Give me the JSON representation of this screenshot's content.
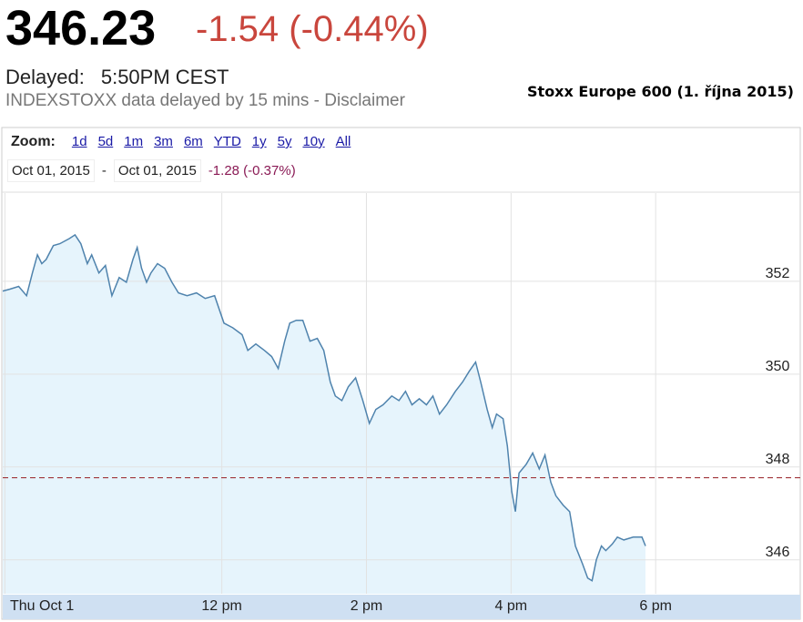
{
  "header": {
    "price": "346.23",
    "change": "-1.54 (-0.44%)",
    "delayed_label": "Delayed:",
    "delayed_time": "5:50PM CEST",
    "disclaimer": "INDEXSTOXX data delayed by 15 mins - Disclaimer",
    "caption": "Stoxx Europe 600 (1. října 2015)"
  },
  "zoom": {
    "label": "Zoom:",
    "options": [
      "1d",
      "5d",
      "1m",
      "3m",
      "6m",
      "YTD",
      "1y",
      "5y",
      "10y",
      "All"
    ]
  },
  "range": {
    "start": "Oct 01, 2015",
    "separator": "-",
    "end": "Oct 01, 2015",
    "change": "-1.28 (-0.37%)"
  },
  "chart_data": {
    "type": "area",
    "color": "#4f83ad",
    "fill": "#e6f4fc",
    "grid": true,
    "reference_line": 347.77,
    "reference_color": "#a0343a",
    "xlim": [
      8.97,
      20
    ],
    "xticks": [
      {
        "value": 9,
        "label": "Thu Oct 1"
      },
      {
        "value": 12,
        "label": "12 pm"
      },
      {
        "value": 14,
        "label": "2 pm"
      },
      {
        "value": 16,
        "label": "4 pm"
      },
      {
        "value": 18,
        "label": "6 pm"
      }
    ],
    "ylim": [
      345.27,
      353.9
    ],
    "yticks": [
      346,
      348,
      350,
      352
    ],
    "x": [
      8.97,
      9.07,
      9.19,
      9.3,
      9.38,
      9.45,
      9.51,
      9.57,
      9.67,
      9.76,
      9.89,
      9.97,
      10.05,
      10.14,
      10.2,
      10.3,
      10.39,
      10.48,
      10.58,
      10.68,
      10.77,
      10.83,
      10.89,
      10.96,
      11.02,
      11.11,
      11.21,
      11.31,
      11.4,
      11.52,
      11.65,
      11.77,
      11.9,
      12.03,
      12.15,
      12.28,
      12.36,
      12.47,
      12.59,
      12.69,
      12.78,
      12.87,
      12.94,
      13.03,
      13.12,
      13.22,
      13.32,
      13.41,
      13.5,
      13.57,
      13.66,
      13.75,
      13.85,
      13.95,
      14.04,
      14.13,
      14.23,
      14.35,
      14.45,
      14.54,
      14.63,
      14.73,
      14.83,
      14.92,
      15.01,
      15.11,
      15.23,
      15.33,
      15.42,
      15.51,
      15.58,
      15.67,
      15.74,
      15.8,
      15.89,
      15.95,
      16.01,
      16.06,
      16.11,
      16.21,
      16.3,
      16.39,
      16.47,
      16.55,
      16.62,
      16.72,
      16.81,
      16.89,
      16.99,
      17.06,
      17.12,
      17.18,
      17.25,
      17.31,
      17.4,
      17.47,
      17.56,
      17.69,
      17.81,
      17.86
    ],
    "values": [
      351.79,
      351.83,
      351.89,
      351.69,
      352.18,
      352.57,
      352.38,
      352.47,
      352.77,
      352.81,
      352.92,
      353.0,
      352.81,
      352.38,
      352.57,
      352.18,
      352.34,
      351.69,
      352.08,
      351.98,
      352.47,
      352.73,
      352.28,
      351.98,
      352.18,
      352.38,
      352.28,
      351.98,
      351.75,
      351.69,
      351.75,
      351.63,
      351.69,
      351.1,
      351.0,
      350.85,
      350.51,
      350.65,
      350.51,
      350.38,
      350.12,
      350.71,
      351.1,
      351.16,
      351.16,
      350.71,
      350.77,
      350.51,
      349.83,
      349.53,
      349.43,
      349.73,
      349.92,
      349.43,
      348.94,
      349.24,
      349.34,
      349.53,
      349.43,
      349.63,
      349.34,
      349.47,
      349.34,
      349.53,
      349.14,
      349.34,
      349.63,
      349.83,
      350.06,
      350.26,
      349.83,
      349.24,
      348.85,
      349.14,
      349.04,
      348.45,
      347.47,
      347.04,
      347.87,
      348.06,
      348.3,
      347.96,
      348.26,
      347.67,
      347.38,
      347.18,
      347.04,
      346.3,
      345.91,
      345.61,
      345.55,
      346.0,
      346.3,
      346.2,
      346.34,
      346.49,
      346.43,
      346.49,
      346.49,
      346.3
    ]
  }
}
